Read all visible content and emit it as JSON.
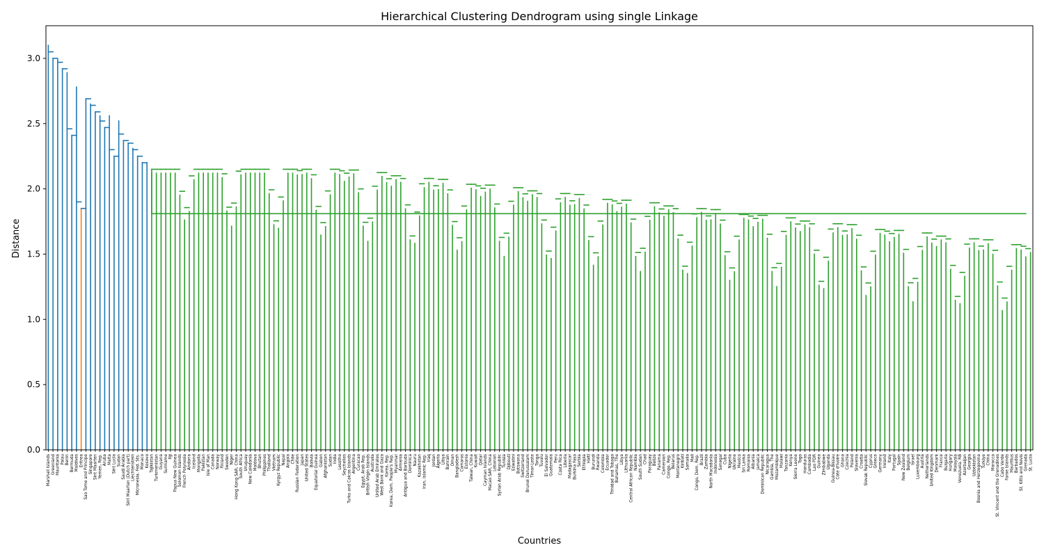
{
  "chart_data": {
    "type": "dendrogram",
    "title": "Hierarchical Clustering Dendrogram using single Linkage",
    "xlabel": "Countries",
    "ylabel": "Distance",
    "ylim": [
      0,
      3.25
    ],
    "yticks": [
      0.0,
      0.5,
      1.0,
      1.5,
      2.0,
      2.5,
      3.0
    ],
    "ytick_labels": [
      "0.0",
      "0.5",
      "1.0",
      "1.5",
      "2.0",
      "2.5",
      "3.0"
    ],
    "grid": false,
    "colors": {
      "outlier": "#1f77b4",
      "cluster_a": "#ff7f0e",
      "cluster_b": "#2ca02c",
      "axis": "#000000"
    },
    "leaves": [
      "Marshall Islands",
      "Greenland",
      "Mauritania",
      "Palau",
      "Benin",
      "Bermuda",
      "Maldives",
      "Eritrea",
      "Sao Tome and Principe",
      "Singapore",
      "Sint Maarten",
      "Yemen, Rep.",
      "Aruba",
      "Malta",
      "Sint Lucia",
      "Sudan",
      "Saudi Arabia",
      "Sint Maarten (Dutch part)",
      "Liechtenstein",
      "Micronesia, Fed. Sts.",
      "Monaco",
      "Kosovo",
      "Tajikistan",
      "Turkmenistan",
      "Guyana",
      "Suriname",
      "Fiji",
      "Papua New Guinea",
      "Solomon Islands",
      "French Polynesia",
      "Andorra",
      "Iceland",
      "Mongolia",
      "Pakistan",
      "Isle of Man",
      "Canada",
      "Norway",
      "Finland",
      "Sweden",
      "Niger",
      "Hong Kong SAR, China",
      "South Africa",
      "Uruguay",
      "New Caledonia",
      "Moldova",
      "Bhutan",
      "Philippines",
      "Thailand",
      "Vietnam",
      "Kyrgyz Republic",
      "Nepal",
      "Angola",
      "Chile",
      "Russian Federation",
      "Japan",
      "United States",
      "Bolivia",
      "Equatorial Guinea",
      "Gabon",
      "Afghanistan",
      "Sudan",
      "India",
      "Lesotho",
      "Seychelles",
      "Turks and Caicos Islands",
      "Argentina",
      "Curacao",
      "Egypt, Arab Rep.",
      "British Virgin Islands",
      "Australia",
      "United Arab Emirates",
      "West Bank and Gaza",
      "Korea, Rep.",
      "Korea, Dem. People's Rep.",
      "Myanmar",
      "Armenia",
      "Antigua and Barbuda",
      "Dominica",
      "Nauru",
      "Kazakhstan",
      "Iran, Islamic Rep.",
      "Iraq",
      "Jordan",
      "Algeria",
      "Libya",
      "Bahrain",
      "Oman",
      "Bangladesh",
      "Comoros",
      "Estonia",
      "Taiwan, China",
      "Kuwait",
      "Qatar",
      "Cayman Islands",
      "Macao SAR, China",
      "Lebanon",
      "Syrian Arab Republic",
      "Tunisia",
      "Djibouti",
      "Eswatini",
      "Botswana",
      "Switzerland",
      "Brunei Darussalam",
      "Timor-Leste",
      "Tonga",
      "Tuvalu",
      "El Salvador",
      "Guatemala",
      "Peru",
      "Costa Rica",
      "Liberia",
      "Madagascar",
      "Burkina Faso",
      "Serbia",
      "Ethiopia",
      "Haiti",
      "Burundi",
      "Rwanda",
      "Colombia",
      "Ecuador",
      "Trinidad and Tobago",
      "Bahamas, The",
      "Libya",
      "Lithuania",
      "Central African Republic",
      "Namibia",
      "South Sudan",
      "Chad",
      "Paraguay",
      "Belize",
      "Panama",
      "Cameroon",
      "Congo, Rep.",
      "Belarus",
      "Montenegro",
      "Kiribati",
      "Somalia",
      "Mali",
      "Congo, Dem. Rep.",
      "Brazil",
      "Zambia",
      "North Macedonia",
      "Indonesia",
      "Senegal",
      "Cuba",
      "Nigeria",
      "Ukraine",
      "Mexico",
      "Sri Lanka",
      "Romania",
      "Albania",
      "Jamaica",
      "Dominican Republic",
      "Nicaragua",
      "Gambia, The",
      "Mozambique",
      "Malawi",
      "Tanzania",
      "Kenya",
      "Sierra Leone",
      "Togo",
      "Honduras",
      "Cambodia",
      "Lao PDR",
      "Guinea",
      "Zimbabwe",
      "Uganda",
      "Guinea-Bissau",
      "Cote d'Ivoire",
      "Ghana",
      "Czechia",
      "Poland",
      "Slovenia",
      "Croatia",
      "Slovak Republic",
      "Cyprus",
      "Greece",
      "Germany",
      "Ireland",
      "Italy",
      "Portugal",
      "Spain",
      "New Zealand",
      "Belgium",
      "Israel",
      "Luxembourg",
      "Austria",
      "Netherlands",
      "United Kingdom",
      "Denmark",
      "France",
      "Bulgaria",
      "Hungary",
      "Malaysia",
      "Venezuela, RB",
      "Azerbaijan",
      "Georgia",
      "Uzbekistan",
      "Bosnia and Herzegovina",
      "Turkiye",
      "China",
      "Morocco",
      "St. Vincent and the Grenadines",
      "Cabo Verde",
      "Faroe Islands",
      "Mauritius",
      "Barbados",
      "St. Kitts and Nevis",
      "Grenada",
      "St. Lucia"
    ],
    "blue_merges": [
      {
        "x_leaf": 0.5,
        "height": 3.1
      },
      {
        "x_leaf": 1.5,
        "height": 3.0
      },
      {
        "x_leaf": 2.5,
        "height": 2.99
      },
      {
        "x_leaf": 3.5,
        "height": 2.92
      },
      {
        "x_leaf": 4.5,
        "height": 2.89
      },
      {
        "x_leaf": 5.5,
        "height": 2.41
      },
      {
        "x_leaf": 6.5,
        "height": 2.78
      },
      {
        "x_leaf": 7.5,
        "height": 1.85
      },
      {
        "x_leaf": 8.5,
        "height": 2.69
      },
      {
        "x_leaf": 9.5,
        "height": 2.65
      },
      {
        "x_leaf": 10.5,
        "height": 2.59
      },
      {
        "x_leaf": 11.5,
        "height": 2.56
      },
      {
        "x_leaf": 12.5,
        "height": 2.47
      },
      {
        "x_leaf": 13.5,
        "height": 2.56
      },
      {
        "x_leaf": 14.5,
        "height": 2.25
      },
      {
        "x_leaf": 15.5,
        "height": 2.52
      },
      {
        "x_leaf": 16.5,
        "height": 2.37
      },
      {
        "x_leaf": 17.5,
        "height": 2.35
      },
      {
        "x_leaf": 18.5,
        "height": 2.31
      },
      {
        "x_leaf": 19.5,
        "height": 2.25
      },
      {
        "x_leaf": 20.5,
        "height": 2.2
      },
      {
        "x_leaf": 21.5,
        "height": 2.2
      }
    ],
    "green_tree_top": 2.15,
    "green_root": 1.81
  }
}
